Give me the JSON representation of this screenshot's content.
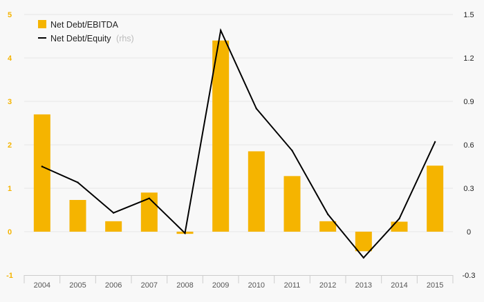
{
  "chart_data": {
    "type": "bar",
    "categories": [
      "2004",
      "2005",
      "2006",
      "2007",
      "2008",
      "2009",
      "2010",
      "2011",
      "2012",
      "2013",
      "2014",
      "2015"
    ],
    "series": [
      {
        "name": "Net Debt/EBITDA",
        "kind": "bar",
        "axis": "left",
        "values": [
          2.7,
          0.73,
          0.24,
          0.9,
          -0.05,
          4.4,
          1.85,
          1.28,
          0.24,
          -0.45,
          0.23,
          1.52
        ]
      },
      {
        "name": "Net Debt/Equity",
        "name_suffix": "(rhs)",
        "kind": "line",
        "axis": "right",
        "values": [
          0.45,
          0.34,
          0.13,
          0.23,
          -0.01,
          1.39,
          0.85,
          0.56,
          0.12,
          -0.18,
          0.09,
          0.62
        ]
      }
    ],
    "y_left": {
      "ylim": [
        -1,
        5
      ],
      "ticks": [
        "-1",
        "0",
        "1",
        "2",
        "3",
        "4",
        "5"
      ]
    },
    "y_right": {
      "ylim": [
        -0.3,
        1.5
      ],
      "ticks": [
        "-0.3",
        "0",
        "0.3",
        "0.6",
        "0.9",
        "1.2",
        "1.5"
      ]
    },
    "legend": "top-left",
    "grid": true,
    "colors": {
      "bar": "#f5b400",
      "line": "#000000",
      "grid": "#e6e6e6",
      "background": "#f8f8f8"
    }
  }
}
